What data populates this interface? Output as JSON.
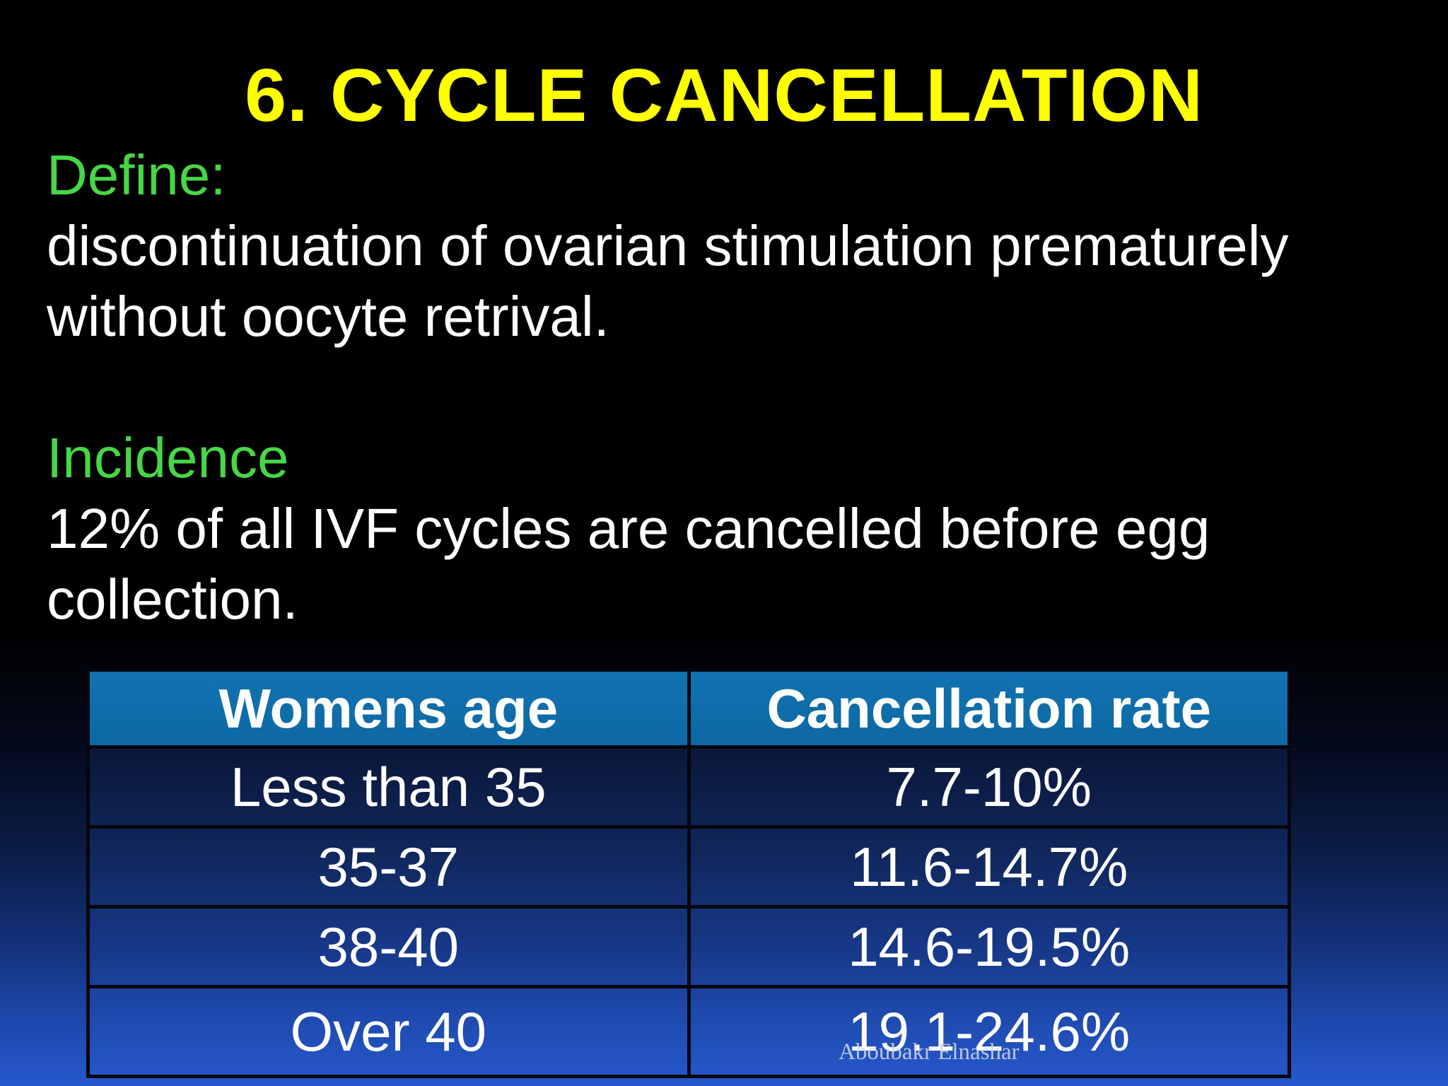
{
  "title": "6. CYCLE CANCELLATION",
  "define": {
    "label": "Define:",
    "line1": "discontinuation of ovarian stimulation prematurely",
    "line2": "without oocyte retrival."
  },
  "incidence": {
    "label": "Incidence",
    "line1": "12% of all IVF cycles are cancelled before egg",
    "line2": "collection."
  },
  "table": {
    "headers": [
      "Womens age",
      "Cancellation rate"
    ],
    "rows": [
      [
        "Less than 35",
        "7.7-10%"
      ],
      [
        "35-37",
        "11.6-14.7%"
      ],
      [
        "38-40",
        "14.6-19.5%"
      ],
      [
        "Over 40",
        "19.1-24.6%"
      ]
    ]
  },
  "watermark": "Aboubakr Elnashar",
  "colors": {
    "yellow": "#ffff00",
    "green": "#46d646",
    "header_blue": "#0d68a4",
    "table_border": "#04070e",
    "bg_bottom": "#2658ce"
  }
}
